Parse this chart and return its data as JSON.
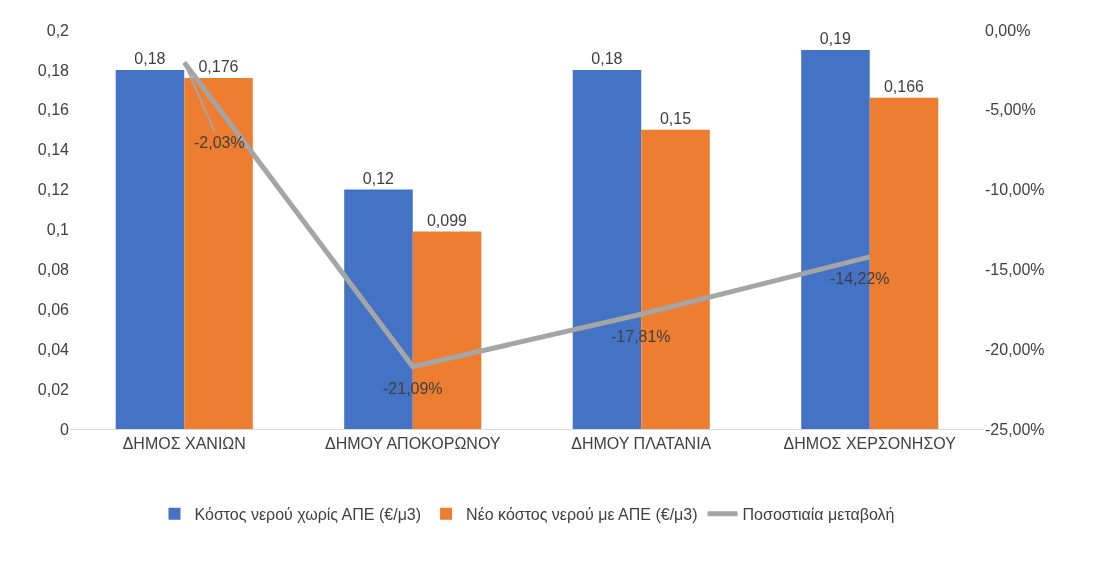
{
  "chart_data": {
    "type": "bar",
    "categories": [
      "ΔΗΜΟΣ ΧΑΝΙΩΝ",
      "ΔΗΜΟΥ ΑΠΟΚΟΡΩΝΟΥ",
      "ΔΗΜΟΥ ΠΛΑΤΑΝΙΑ",
      "ΔΗΜΟΣ ΧΕΡΣΟΝΗΣΟΥ"
    ],
    "series": [
      {
        "name": "Κόστος νερού χωρίς ΑΠΕ (€/μ3)",
        "color": "#4472c4",
        "values": [
          0.18,
          0.12,
          0.18,
          0.19
        ],
        "value_labels": [
          "0,18",
          "0,12",
          "0,18",
          "0,19"
        ]
      },
      {
        "name": "Νέο κόστος νερού με ΑΠΕ (€/μ3)",
        "color": "#ed7d31",
        "values": [
          0.176,
          0.099,
          0.15,
          0.166
        ],
        "value_labels": [
          "0,176",
          "0,099",
          "0,15",
          "0,166"
        ]
      },
      {
        "name": "Ποσοστιαία μεταβολή",
        "type": "line",
        "axis": "y2",
        "color": "#a5a5a5",
        "values": [
          -2.03,
          -21.09,
          -17.81,
          -14.22
        ],
        "value_labels": [
          "-2,03%",
          "-21,09%",
          "-17,81%",
          "-14,22%"
        ]
      }
    ],
    "ylim": [
      0,
      0.2
    ],
    "yticks": [
      0,
      {
        "value": 0.02,
        "label": "0,02"
      },
      {
        "value": 0.04,
        "label": "0,04"
      },
      {
        "value": 0.06,
        "label": "0,06"
      },
      {
        "value": 0.08,
        "label": "0,08"
      },
      {
        "value": 0.1,
        "label": "0,1"
      },
      {
        "value": 0.12,
        "label": "0,12"
      },
      {
        "value": 0.14,
        "label": "0,14"
      },
      {
        "value": 0.16,
        "label": "0,16"
      },
      {
        "value": 0.18,
        "label": "0,18"
      },
      {
        "value": 0.2,
        "label": "0,2"
      }
    ],
    "y2lim": [
      -25,
      0
    ],
    "y2ticks": [
      {
        "value": -25,
        "label": "-25,00%"
      },
      {
        "value": -20,
        "label": "-20,00%"
      },
      {
        "value": -15,
        "label": "-15,00%"
      },
      {
        "value": -10,
        "label": "-10,00%"
      },
      {
        "value": -5,
        "label": "-5,00%"
      },
      {
        "value": 0,
        "label": "0,00%"
      }
    ],
    "grid": false,
    "legend": "bottom",
    "marker": "none",
    "line_style": "solid"
  }
}
